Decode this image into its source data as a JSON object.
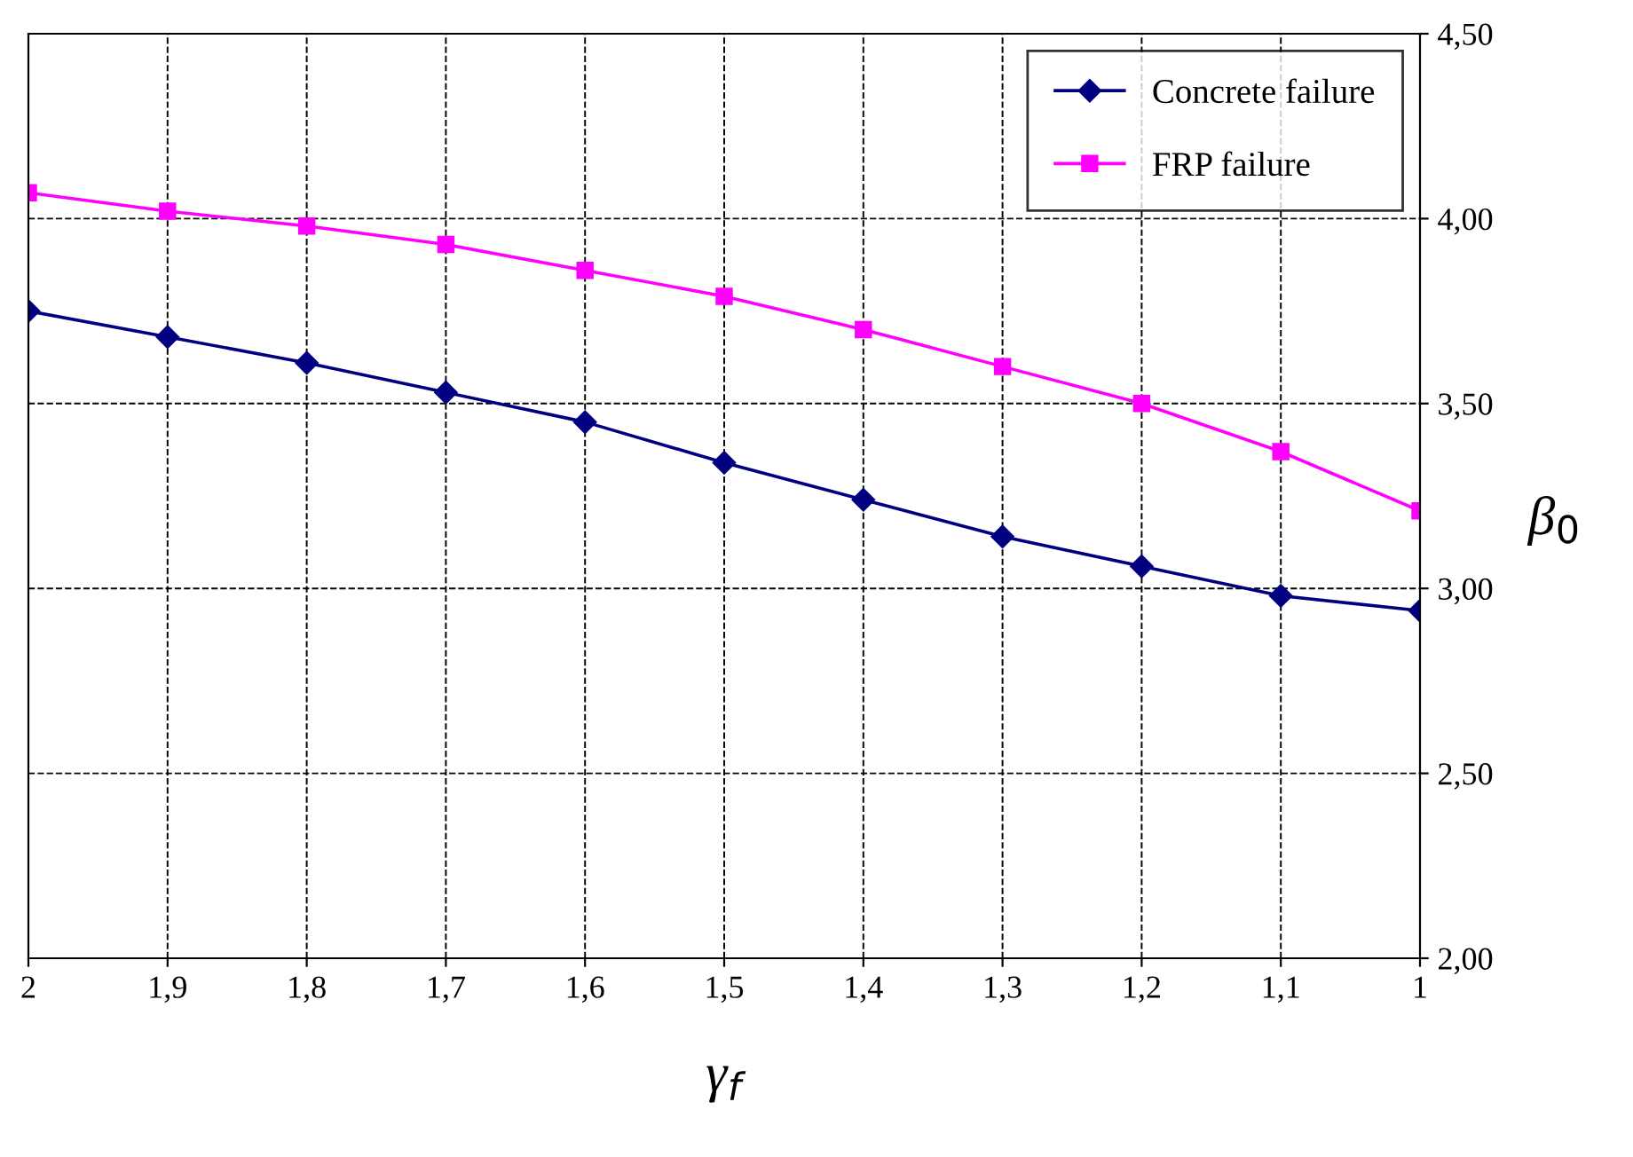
{
  "chart_data": {
    "type": "line",
    "xlabel": "γ$_{f}$",
    "ylabel": "β$_{0}$",
    "x": [
      2,
      1.9,
      1.8,
      1.7,
      1.6,
      1.5,
      1.4,
      1.3,
      1.2,
      1.1,
      1
    ],
    "xlim": [
      2,
      1
    ],
    "xticks": [
      2,
      {
        "value": 1.9,
        "label": "1,9"
      },
      {
        "value": 1.8,
        "label": "1,8"
      },
      {
        "value": 1.7,
        "label": "1,7"
      },
      {
        "value": 1.6,
        "label": "1,6"
      },
      {
        "value": 1.5,
        "label": "1,5"
      },
      {
        "value": 1.4,
        "label": "1,4"
      },
      {
        "value": 1.3,
        "label": "1,3"
      },
      {
        "value": 1.2,
        "label": "1,2"
      },
      {
        "value": 1.1,
        "label": "1,1"
      },
      1
    ],
    "ylim": [
      2.0,
      4.5
    ],
    "yticks": [
      {
        "value": 2.0,
        "label": "2,00"
      },
      {
        "value": 2.5,
        "label": "2,50"
      },
      {
        "value": 3.0,
        "label": "3,00"
      },
      {
        "value": 3.5,
        "label": "3,50"
      },
      {
        "value": 4.0,
        "label": "4,00"
      },
      {
        "value": 4.5,
        "label": "4,50"
      }
    ],
    "grid": true,
    "legend": "top right",
    "series": [
      {
        "name": "Concrete failure",
        "color": "#000080",
        "marker": "diamond",
        "values": [
          3.75,
          3.68,
          3.61,
          3.53,
          3.45,
          3.34,
          3.24,
          3.14,
          3.06,
          2.98,
          2.94
        ]
      },
      {
        "name": "FRP failure",
        "color": "#ff00ff",
        "marker": "square",
        "values": [
          4.07,
          4.02,
          3.98,
          3.93,
          3.86,
          3.79,
          3.7,
          3.6,
          3.5,
          3.37,
          3.21
        ]
      }
    ]
  }
}
